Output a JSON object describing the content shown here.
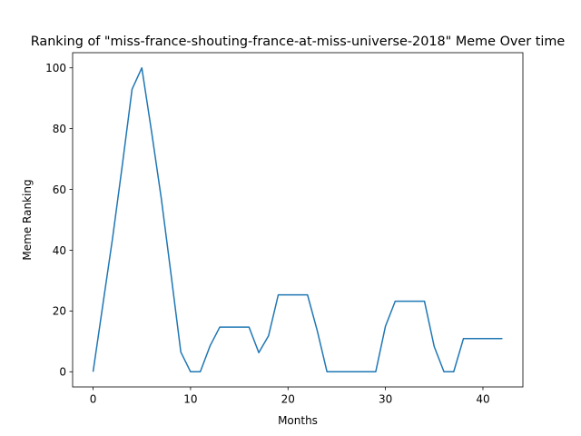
{
  "chart_data": {
    "type": "line",
    "title": "Ranking of \"miss-france-shouting-france-at-miss-universe-2018\" Meme Over time",
    "xlabel": "Months",
    "ylabel": "Meme Ranking",
    "xlim": [
      -2.1,
      44.1
    ],
    "ylim": [
      -5,
      105
    ],
    "xticks": [
      0,
      10,
      20,
      30,
      40
    ],
    "yticks": [
      0,
      20,
      40,
      60,
      80,
      100
    ],
    "grid": false,
    "series": [
      {
        "color": "#1f77b4",
        "x": [
          0,
          1,
          2,
          3,
          4,
          5,
          6,
          7,
          8,
          9,
          10,
          11,
          12,
          13,
          14,
          15,
          16,
          17,
          18,
          19,
          20,
          21,
          22,
          23,
          24,
          25,
          26,
          27,
          28,
          29,
          30,
          31,
          32,
          33,
          34,
          35,
          36,
          37,
          38,
          39,
          40,
          41,
          42
        ],
        "y": [
          0,
          22,
          44,
          68,
          93,
          100,
          79,
          57,
          32,
          6.5,
          0,
          0,
          8.5,
          14.7,
          14.7,
          14.7,
          14.7,
          6.3,
          11.8,
          25.3,
          25.3,
          25.3,
          25.3,
          13.5,
          0,
          0,
          0,
          0,
          0,
          0,
          15,
          23.2,
          23.2,
          23.2,
          23.2,
          8.3,
          0,
          0,
          10.9,
          10.9,
          10.9,
          10.9,
          10.9
        ]
      }
    ]
  }
}
